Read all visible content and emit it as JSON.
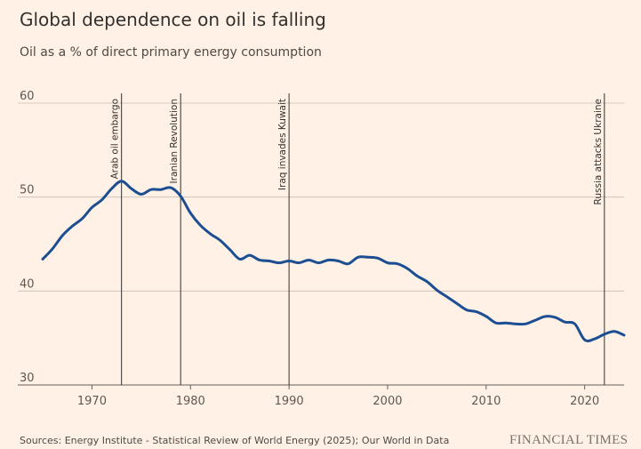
{
  "header": {
    "title": "Global dependence on oil is falling",
    "subtitle": "Oil as a % of direct primary energy consumption"
  },
  "footer": {
    "source": "Sources: Energy Institute - Statistical Review of World Energy (2025); Our World in Data",
    "brand": "FINANCIAL TIMES"
  },
  "colors": {
    "background": "#FFF1E5",
    "line": "#1C4E92",
    "grid": "#C7BDB4",
    "event_line": "#33302E"
  },
  "chart_data": {
    "type": "line",
    "title": "Global dependence on oil is falling",
    "subtitle": "Oil as a % of direct primary energy consumption",
    "xlabel": "",
    "ylabel": "",
    "xlim": [
      1965,
      2024
    ],
    "ylim": [
      30,
      60
    ],
    "x_ticks": [
      1970,
      1980,
      1990,
      2000,
      2010,
      2020
    ],
    "y_ticks": [
      30,
      40,
      50,
      60
    ],
    "grid": true,
    "series": [
      {
        "name": "",
        "x": [
          1965,
          1966,
          1967,
          1968,
          1969,
          1970,
          1971,
          1972,
          1973,
          1974,
          1975,
          1976,
          1977,
          1978,
          1979,
          1980,
          1981,
          1982,
          1983,
          1984,
          1985,
          1986,
          1987,
          1988,
          1989,
          1990,
          1991,
          1992,
          1993,
          1994,
          1995,
          1996,
          1997,
          1998,
          1999,
          2000,
          2001,
          2002,
          2003,
          2004,
          2005,
          2006,
          2007,
          2008,
          2009,
          2010,
          2011,
          2012,
          2013,
          2014,
          2015,
          2016,
          2017,
          2018,
          2019,
          2020,
          2021,
          2022,
          2023,
          2024
        ],
        "y": [
          43.4,
          44.5,
          45.9,
          46.9,
          47.7,
          48.9,
          49.7,
          50.9,
          51.7,
          50.9,
          50.3,
          50.8,
          50.8,
          51.0,
          50.1,
          48.3,
          47.0,
          46.1,
          45.4,
          44.4,
          43.4,
          43.8,
          43.3,
          43.2,
          43.0,
          43.2,
          43.0,
          43.3,
          43.0,
          43.3,
          43.2,
          42.9,
          43.6,
          43.6,
          43.5,
          43.0,
          42.9,
          42.4,
          41.6,
          41.0,
          40.1,
          39.4,
          38.7,
          38.0,
          37.8,
          37.3,
          36.6,
          36.6,
          36.5,
          36.5,
          36.9,
          37.3,
          37.2,
          36.7,
          36.5,
          34.8,
          34.9,
          35.4,
          35.7,
          35.3
        ]
      }
    ],
    "annotations": [
      {
        "x": 1973,
        "label": "Arab oil embargo"
      },
      {
        "x": 1979,
        "label": "Iranian Revolution"
      },
      {
        "x": 1990,
        "label": "Iraq invades Kuwait"
      },
      {
        "x": 2022,
        "label": "Russia attacks Ukraine"
      }
    ]
  }
}
